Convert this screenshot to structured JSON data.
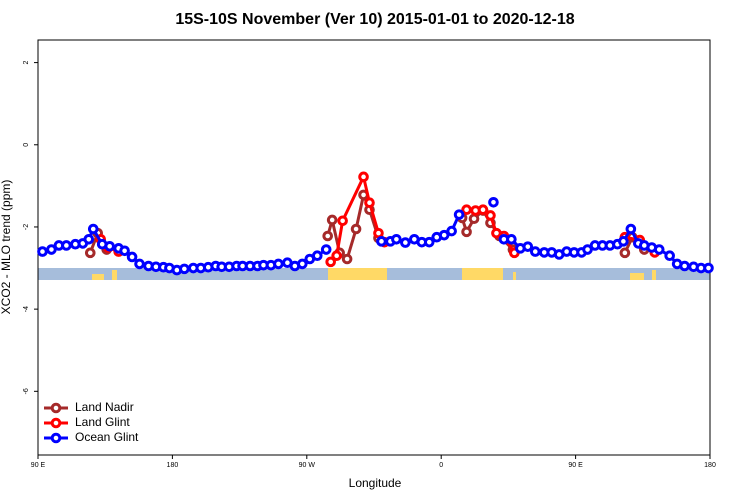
{
  "chart_data": {
    "type": "line",
    "title": "15S-10S November (Ver 10)   2015-01-01 to 2020-12-18",
    "x_label": "Longitude",
    "y_label": "XCO2 - MLO trend (ppm)",
    "xlim": [
      90,
      540
    ],
    "xticks": [
      {
        "value": 90,
        "label": "90 E"
      },
      {
        "value": 180,
        "label": "180"
      },
      {
        "value": 270,
        "label": "90 W"
      },
      {
        "value": 360,
        "label": "0"
      },
      {
        "value": 450,
        "label": "90 E"
      },
      {
        "value": 540,
        "label": "180"
      }
    ],
    "ylim": [
      -7.55,
      2.55
    ],
    "yticks": [
      2,
      0,
      -2,
      -4,
      -6
    ],
    "legend": "bottom-left",
    "series": [
      {
        "name": "Land Nadir",
        "color": "#a52a2a",
        "x": [
          125,
          130,
          136,
          null,
          284,
          287,
          292,
          297,
          303,
          308,
          312,
          318,
          null,
          374,
          377,
          382,
          388,
          393,
          399,
          408,
          null,
          483,
          488,
          496
        ],
        "values": [
          -2.63,
          -2.15,
          -2.55,
          null,
          -2.22,
          -1.83,
          -2.63,
          -2.78,
          -2.05,
          -1.22,
          -1.58,
          -2.27,
          null,
          -1.78,
          -2.12,
          -1.8,
          -1.6,
          -1.9,
          -2.22,
          -2.55,
          null,
          -2.63,
          -2.25,
          -2.55
        ]
      },
      {
        "name": "Land Glint",
        "color": "#ff0000",
        "x": [
          132,
          137,
          144,
          null,
          286,
          290,
          294,
          308,
          312,
          318,
          322,
          null,
          377,
          383,
          388,
          393,
          397,
          402,
          409,
          null,
          483,
          493,
          503
        ],
        "values": [
          -2.3,
          -2.5,
          -2.6,
          null,
          -2.85,
          -2.7,
          -1.85,
          -0.78,
          -1.41,
          -2.15,
          -2.37,
          null,
          -1.58,
          -1.6,
          -1.58,
          -1.72,
          -2.15,
          -2.22,
          -2.63,
          null,
          -2.25,
          -2.32,
          -2.62
        ]
      },
      {
        "name": "Ocean Glint",
        "color": "#0000ff",
        "x": [
          93,
          99,
          104,
          109,
          115,
          120,
          124,
          127,
          133,
          138,
          144,
          148,
          153,
          158,
          164,
          169,
          174,
          178,
          183,
          188,
          194,
          199,
          204,
          209,
          213,
          218,
          223,
          227,
          232,
          237,
          241,
          246,
          251,
          257,
          262,
          267,
          272,
          277,
          283,
          null,
          320,
          326,
          330,
          336,
          342,
          347,
          352,
          357,
          362,
          367,
          372,
          null,
          395,
          null,
          402,
          407,
          413,
          418,
          423,
          429,
          434,
          439,
          444,
          449,
          454,
          458,
          463,
          468,
          473,
          478,
          482,
          487,
          492,
          496,
          501,
          506,
          513,
          518,
          523,
          529,
          534,
          539
        ],
        "values": [
          -2.6,
          -2.55,
          -2.45,
          -2.45,
          -2.42,
          -2.4,
          -2.3,
          -2.05,
          -2.42,
          -2.47,
          -2.52,
          -2.58,
          -2.73,
          -2.9,
          -2.95,
          -2.97,
          -2.98,
          -3.0,
          -3.05,
          -3.02,
          -3.0,
          -3.0,
          -2.98,
          -2.95,
          -2.97,
          -2.97,
          -2.95,
          -2.95,
          -2.95,
          -2.95,
          -2.93,
          -2.93,
          -2.9,
          -2.87,
          -2.95,
          -2.9,
          -2.78,
          -2.7,
          -2.55,
          null,
          -2.35,
          -2.35,
          -2.3,
          -2.38,
          -2.3,
          -2.37,
          -2.37,
          -2.25,
          -2.2,
          -2.1,
          -1.7,
          null,
          -1.4,
          null,
          -2.3,
          -2.3,
          -2.52,
          -2.48,
          -2.6,
          -2.62,
          -2.62,
          -2.67,
          -2.6,
          -2.62,
          -2.62,
          -2.55,
          -2.45,
          -2.45,
          -2.45,
          -2.42,
          -2.35,
          -2.05,
          -2.4,
          -2.45,
          -2.5,
          -2.55,
          -2.7,
          -2.9,
          -2.95,
          -2.97,
          -3.0,
          -3.0
        ]
      }
    ]
  }
}
